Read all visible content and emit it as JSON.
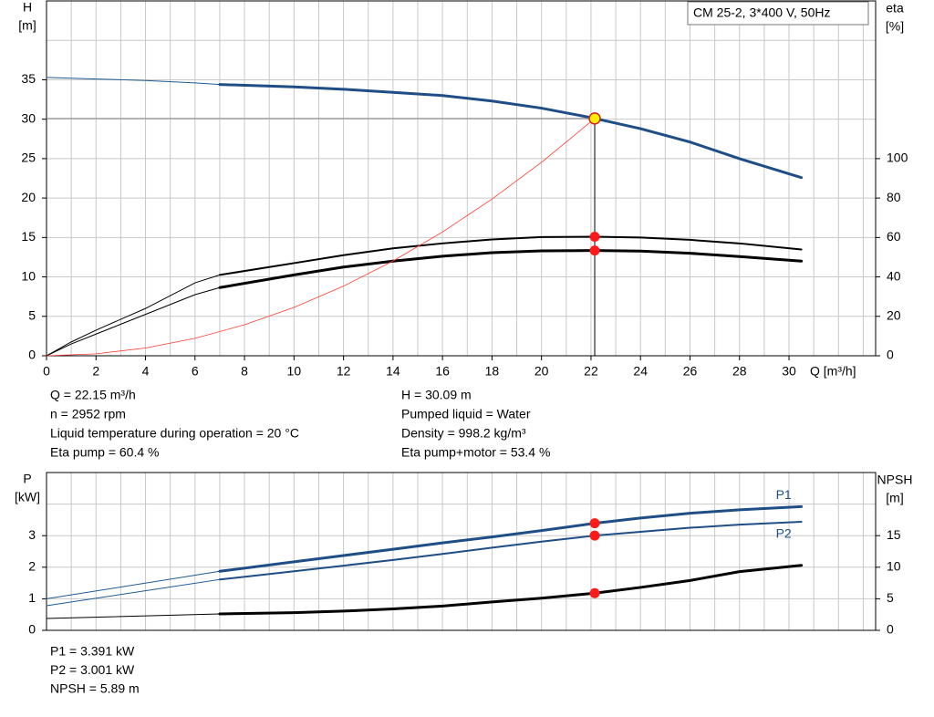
{
  "chart_data": [
    {
      "type": "line",
      "title": "CM 25-2, 3*400 V, 50Hz",
      "y_label": [
        "H",
        "[m]"
      ],
      "y2_label": [
        "eta",
        "[%]"
      ],
      "x_label": "Q [m³/h]",
      "xlim": [
        0,
        33.5
      ],
      "ylim": [
        0,
        45
      ],
      "y2lim": [
        0,
        180
      ],
      "xticks": [
        0,
        2,
        4,
        6,
        8,
        10,
        12,
        14,
        16,
        18,
        20,
        22,
        24,
        26,
        28,
        30
      ],
      "yticks": [
        0,
        5,
        10,
        15,
        20,
        25,
        30,
        35
      ],
      "y2ticks": [
        0,
        20,
        40,
        60,
        80,
        100
      ],
      "xgrid": [
        1,
        2,
        3,
        4,
        5,
        6,
        7,
        8,
        9,
        10,
        11,
        12,
        13,
        14,
        15,
        16,
        17,
        18,
        19,
        20,
        21,
        22,
        23,
        24,
        25,
        26,
        27,
        28,
        29,
        30,
        31,
        32,
        33
      ],
      "ygrid": [
        5,
        10,
        15,
        20,
        25,
        30,
        35,
        40
      ],
      "series": [
        {
          "color": "#1f5a96",
          "width": 1,
          "x": [
            0,
            2,
            4,
            6,
            7
          ],
          "values": [
            35.3,
            35.1,
            34.9,
            34.6,
            34.4
          ]
        },
        {
          "color": "#1f4e87",
          "width": 3,
          "x": [
            7,
            10,
            12,
            14,
            16,
            18,
            20,
            22,
            24,
            26,
            28,
            30.5
          ],
          "values": [
            34.4,
            34.1,
            33.8,
            33.4,
            33.0,
            32.3,
            31.4,
            30.2,
            28.8,
            27.1,
            25.0,
            22.6
          ]
        },
        {
          "color": "#000000",
          "width": 1,
          "axis": "y2",
          "x": [
            0,
            1,
            2,
            4,
            6,
            7
          ],
          "values": [
            0,
            7,
            13,
            24,
            37,
            41
          ]
        },
        {
          "color": "#000000",
          "width": 2,
          "axis": "y2",
          "x": [
            7,
            10,
            12,
            14,
            16,
            18,
            20,
            22.15,
            24,
            26,
            28,
            30.5
          ],
          "values": [
            41,
            47,
            51,
            54.5,
            57,
            59,
            60.2,
            60.4,
            60.0,
            58.8,
            57,
            53.9
          ]
        },
        {
          "color": "#000000",
          "width": 1,
          "axis": "y2",
          "x": [
            0,
            1,
            2,
            4,
            6,
            7
          ],
          "values": [
            0,
            6,
            11,
            21,
            31,
            34.6
          ]
        },
        {
          "color": "#000000",
          "width": 3,
          "axis": "y2",
          "x": [
            7,
            10,
            12,
            14,
            16,
            18,
            20,
            22.15,
            24,
            26,
            28,
            30.5
          ],
          "values": [
            34.6,
            41,
            45,
            48,
            50.5,
            52.3,
            53.2,
            53.4,
            53.1,
            52,
            50.3,
            48
          ]
        },
        {
          "color": "#ff3b2f",
          "width": 0.8,
          "x": [
            0,
            2,
            4,
            6,
            8,
            10,
            12,
            14,
            16,
            18,
            20,
            22.15
          ],
          "values": [
            0,
            0.25,
            0.98,
            2.21,
            3.93,
            6.13,
            8.83,
            12.02,
            15.7,
            19.87,
            24.53,
            30.09
          ]
        }
      ],
      "markers": [
        {
          "x": 22.15,
          "y": 30.09,
          "color": "#ffee00",
          "crosshair": true
        },
        {
          "x": 22.15,
          "y": 60.4,
          "axis": "y2",
          "color": "#ff1a1a"
        },
        {
          "x": 22.15,
          "y": 53.4,
          "axis": "y2",
          "color": "#ff1a1a"
        }
      ],
      "notes": [
        [
          "Q = 22.15 m³/h",
          "n = 2952 rpm",
          "Liquid temperature during operation = 20 °C",
          "Eta pump = 60.4 %"
        ],
        [
          "H = 30.09 m",
          "Pumped liquid = Water",
          "Density = 998.2 kg/m³",
          "Eta pump+motor = 53.4 %"
        ]
      ]
    },
    {
      "type": "line",
      "y_label": [
        "P",
        "[kW]"
      ],
      "y2_label": [
        "NPSH",
        "[m]"
      ],
      "xlim": [
        0,
        33.5
      ],
      "ylim": [
        0,
        5
      ],
      "y2lim": [
        0,
        25
      ],
      "yticks": [
        0,
        1,
        2,
        3
      ],
      "y2ticks": [
        0,
        5,
        10,
        15
      ],
      "xgrid": [
        1,
        2,
        3,
        4,
        5,
        6,
        7,
        8,
        9,
        10,
        11,
        12,
        13,
        14,
        15,
        16,
        17,
        18,
        19,
        20,
        21,
        22,
        23,
        24,
        25,
        26,
        27,
        28,
        29,
        30,
        31,
        32,
        33
      ],
      "ygrid": [
        1,
        2,
        3,
        4
      ],
      "series": [
        {
          "color": "#1f5a96",
          "width": 1,
          "x": [
            0,
            7
          ],
          "values": [
            1.0,
            1.87
          ]
        },
        {
          "name": "P1",
          "color": "#1f4e87",
          "width": 3,
          "x": [
            7,
            10,
            12,
            14,
            16,
            18,
            20,
            22.15,
            24,
            26,
            28,
            30.5
          ],
          "values": [
            1.87,
            2.17,
            2.37,
            2.57,
            2.77,
            2.96,
            3.16,
            3.391,
            3.56,
            3.71,
            3.82,
            3.92
          ]
        },
        {
          "color": "#1f5a96",
          "width": 1,
          "x": [
            0,
            7
          ],
          "values": [
            0.78,
            1.61
          ]
        },
        {
          "name": "P2",
          "color": "#1f4e87",
          "width": 2,
          "x": [
            7,
            10,
            12,
            14,
            16,
            18,
            20,
            22.15,
            24,
            26,
            28,
            30.5
          ],
          "values": [
            1.61,
            1.87,
            2.05,
            2.23,
            2.42,
            2.62,
            2.81,
            3.001,
            3.12,
            3.25,
            3.35,
            3.44
          ]
        },
        {
          "color": "#000000",
          "width": 1,
          "axis": "y2",
          "x": [
            0,
            7
          ],
          "values": [
            1.87,
            2.6
          ]
        },
        {
          "color": "#000000",
          "width": 3,
          "axis": "y2",
          "x": [
            7,
            10,
            12,
            14,
            16,
            18,
            20,
            22.15,
            24,
            26,
            28,
            30.5
          ],
          "values": [
            2.6,
            2.8,
            3.05,
            3.4,
            3.85,
            4.5,
            5.1,
            5.89,
            6.8,
            7.9,
            9.3,
            10.3
          ]
        }
      ],
      "markers": [
        {
          "x": 22.15,
          "y": 3.391,
          "color": "#ff1a1a"
        },
        {
          "x": 22.15,
          "y": 3.001,
          "color": "#ff1a1a"
        },
        {
          "x": 22.15,
          "y": 5.89,
          "axis": "y2",
          "color": "#ff1a1a"
        }
      ],
      "notes": [
        [
          "P1 = 3.391 kW",
          "P2 = 3.001 kW",
          "NPSH = 5.89 m"
        ]
      ]
    }
  ]
}
